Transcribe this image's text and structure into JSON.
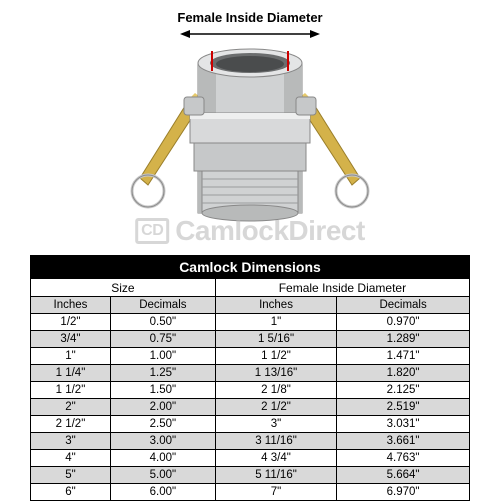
{
  "figure": {
    "label": "Female Inside Diameter",
    "arrow_color": "#000000",
    "dim_line_color": "#cc0000",
    "coupling_body_color": "#d0d2d3",
    "coupling_shadow": "#9a9c9d",
    "arm_color": "#d4b24a",
    "ring_color": "#c8c8c8"
  },
  "watermark": {
    "logo_text": "CD",
    "text": "CamlockDirect"
  },
  "table": {
    "title": "Camlock Dimensions",
    "group_headers": [
      "Size",
      "Female Inside Diameter"
    ],
    "sub_headers": [
      "Inches",
      "Decimals",
      "Inches",
      "Decimals"
    ],
    "header_bg": "#d9d9d9",
    "alt_row_bg": "#d9d9d9",
    "rows": [
      [
        "1/2\"",
        "0.50\"",
        "1\"",
        "0.970\""
      ],
      [
        "3/4\"",
        "0.75\"",
        "1 5/16\"",
        "1.289\""
      ],
      [
        "1\"",
        "1.00\"",
        "1 1/2\"",
        "1.471\""
      ],
      [
        "1 1/4\"",
        "1.25\"",
        "1 13/16\"",
        "1.820\""
      ],
      [
        "1 1/2\"",
        "1.50\"",
        "2 1/8\"",
        "2.125\""
      ],
      [
        "2\"",
        "2.00\"",
        "2 1/2\"",
        "2.519\""
      ],
      [
        "2 1/2\"",
        "2.50\"",
        "3\"",
        "3.031\""
      ],
      [
        "3\"",
        "3.00\"",
        "3 11/16\"",
        "3.661\""
      ],
      [
        "4\"",
        "4.00\"",
        "4 3/4\"",
        "4.763\""
      ],
      [
        "5\"",
        "5.00\"",
        "5 11/16\"",
        "5.664\""
      ],
      [
        "6\"",
        "6.00\"",
        "7\"",
        "6.970\""
      ]
    ]
  }
}
